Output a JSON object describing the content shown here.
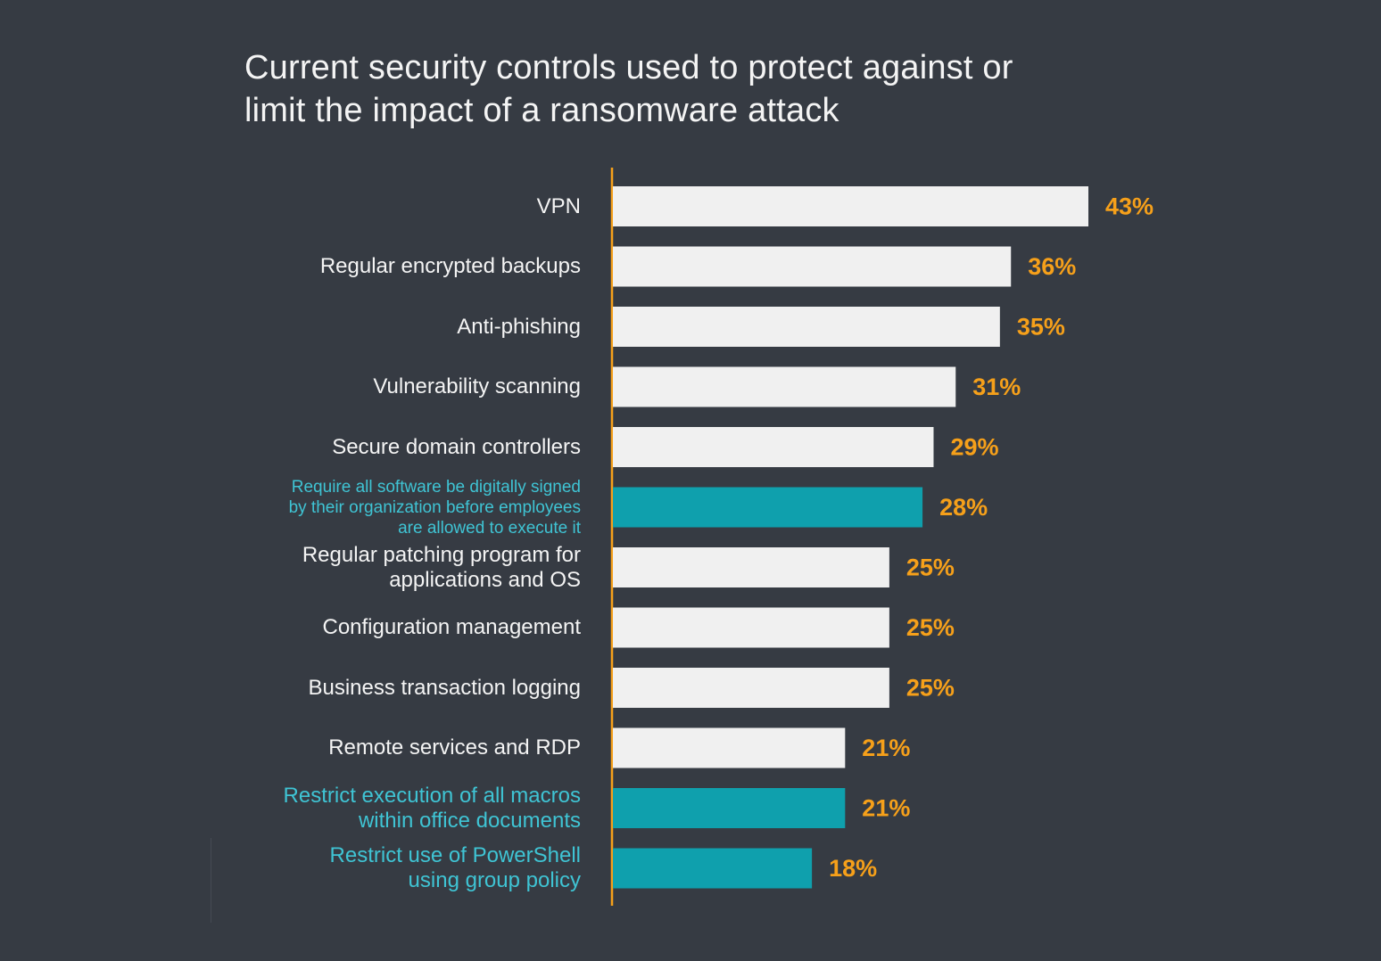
{
  "title_lines": [
    "Current security controls used to protect against or",
    "limit the impact of a ransomware attack"
  ],
  "colors": {
    "background": "#363b43",
    "bar_default": "#f0f0f0",
    "bar_highlight": "#0fa0ad",
    "label_default": "#f4f4f4",
    "label_highlight": "#3fc4d4",
    "value_label": "#f6a01a",
    "axis": "#f6a01a"
  },
  "chart_data": {
    "type": "bar",
    "orientation": "horizontal",
    "title": "Current security controls used to protect against or limit the impact of a ransomware attack",
    "xlabel": "",
    "ylabel": "",
    "value_format": "percent",
    "xlim": [
      0,
      43
    ],
    "grid": false,
    "legend": "none",
    "categories": [
      {
        "label_lines": [
          "VPN"
        ],
        "value": 43,
        "value_label": "43%",
        "highlight": false
      },
      {
        "label_lines": [
          "Regular encrypted backups"
        ],
        "value": 36,
        "value_label": "36%",
        "highlight": false
      },
      {
        "label_lines": [
          "Anti-phishing"
        ],
        "value": 35,
        "value_label": "35%",
        "highlight": false
      },
      {
        "label_lines": [
          "Vulnerability scanning"
        ],
        "value": 31,
        "value_label": "31%",
        "highlight": false
      },
      {
        "label_lines": [
          "Secure domain controllers"
        ],
        "value": 29,
        "value_label": "29%",
        "highlight": false
      },
      {
        "label_lines": [
          "Require all software be digitally signed",
          "by their organization before employees",
          "are allowed to execute it"
        ],
        "value": 28,
        "value_label": "28%",
        "highlight": true
      },
      {
        "label_lines": [
          "Regular patching program for",
          "applications and OS"
        ],
        "value": 25,
        "value_label": "25%",
        "highlight": false
      },
      {
        "label_lines": [
          "Configuration management"
        ],
        "value": 25,
        "value_label": "25%",
        "highlight": false
      },
      {
        "label_lines": [
          "Business transaction logging"
        ],
        "value": 25,
        "value_label": "25%",
        "highlight": false
      },
      {
        "label_lines": [
          "Remote services and RDP"
        ],
        "value": 21,
        "value_label": "21%",
        "highlight": false
      },
      {
        "label_lines": [
          "Restrict execution of all macros",
          "within office documents"
        ],
        "value": 21,
        "value_label": "21%",
        "highlight": true
      },
      {
        "label_lines": [
          "Restrict use of PowerShell",
          "using group policy"
        ],
        "value": 18,
        "value_label": "18%",
        "highlight": true
      }
    ]
  }
}
